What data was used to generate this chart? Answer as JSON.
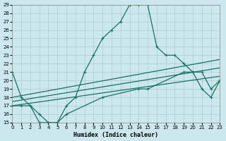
{
  "xlabel": "Humidex (Indice chaleur)",
  "xlim": [
    0,
    23
  ],
  "ylim": [
    15,
    29
  ],
  "xticks": [
    0,
    1,
    2,
    3,
    4,
    5,
    6,
    7,
    8,
    9,
    10,
    11,
    12,
    13,
    14,
    15,
    16,
    17,
    18,
    19,
    20,
    21,
    22,
    23
  ],
  "yticks": [
    15,
    16,
    17,
    18,
    19,
    20,
    21,
    22,
    23,
    24,
    25,
    26,
    27,
    28,
    29
  ],
  "bg_color": "#cce8ee",
  "grid_color": "#aaccd4",
  "line_color": "#1a7060",
  "curve1_x": [
    0,
    1,
    2,
    3,
    4,
    5,
    6,
    7,
    8,
    9,
    10,
    11,
    12,
    13,
    14,
    15,
    16,
    17,
    18,
    19,
    20,
    21,
    22,
    23
  ],
  "curve1_y": [
    21,
    18,
    17,
    15,
    15,
    15,
    17,
    18,
    21,
    23,
    25,
    26,
    27,
    29,
    29,
    29,
    24,
    23,
    23,
    22,
    21,
    21,
    19,
    20
  ],
  "curve2_x": [
    0,
    1,
    2,
    3,
    4,
    5,
    6,
    10,
    14,
    15,
    19,
    20,
    21,
    22,
    23
  ],
  "curve2_y": [
    17,
    17,
    17,
    16,
    15,
    15,
    16,
    18,
    19,
    19,
    21,
    21,
    19,
    18,
    20
  ],
  "line3_x": [
    0,
    23
  ],
  "line3_y": [
    17.0,
    20.5
  ],
  "line4_x": [
    0,
    23
  ],
  "line4_y": [
    17.5,
    21.5
  ],
  "line5_x": [
    0,
    23
  ],
  "line5_y": [
    18.0,
    22.5
  ]
}
